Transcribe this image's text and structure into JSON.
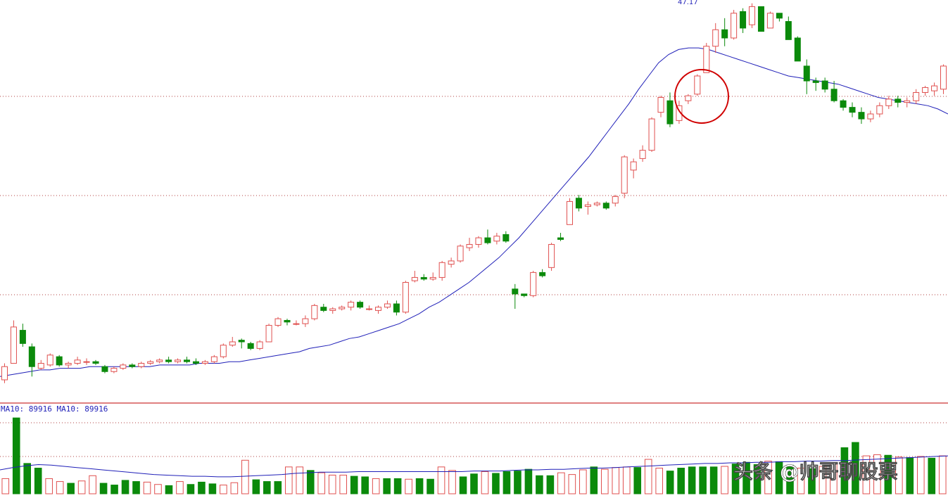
{
  "chart_data": {
    "type": "candlestick",
    "price_panel": {
      "peak_label": "47.17",
      "candles": [
        [
          0.0,
          0.1,
          -0.02,
          0.08
        ],
        [
          0.1,
          0.36,
          0.1,
          0.32
        ],
        [
          0.3,
          0.34,
          0.2,
          0.22
        ],
        [
          0.2,
          0.22,
          0.02,
          0.08
        ],
        [
          0.07,
          0.12,
          0.06,
          0.1
        ],
        [
          0.09,
          0.16,
          0.08,
          0.15
        ],
        [
          0.14,
          0.15,
          0.08,
          0.09
        ],
        [
          0.09,
          0.11,
          0.07,
          0.1
        ],
        [
          0.1,
          0.14,
          0.09,
          0.12
        ],
        [
          0.11,
          0.13,
          0.09,
          0.11
        ],
        [
          0.11,
          0.12,
          0.09,
          0.1
        ],
        [
          0.08,
          0.09,
          0.04,
          0.05
        ],
        [
          0.05,
          0.08,
          0.04,
          0.07
        ],
        [
          0.07,
          0.1,
          0.06,
          0.09
        ],
        [
          0.09,
          0.1,
          0.07,
          0.08
        ],
        [
          0.08,
          0.11,
          0.07,
          0.1
        ],
        [
          0.1,
          0.12,
          0.09,
          0.11
        ],
        [
          0.11,
          0.13,
          0.1,
          0.12
        ],
        [
          0.12,
          0.14,
          0.1,
          0.11
        ],
        [
          0.11,
          0.13,
          0.1,
          0.12
        ],
        [
          0.12,
          0.14,
          0.1,
          0.11
        ],
        [
          0.11,
          0.13,
          0.09,
          0.1
        ],
        [
          0.1,
          0.12,
          0.09,
          0.11
        ],
        [
          0.11,
          0.15,
          0.1,
          0.14
        ],
        [
          0.14,
          0.22,
          0.13,
          0.21
        ],
        [
          0.21,
          0.26,
          0.2,
          0.23
        ],
        [
          0.24,
          0.25,
          0.19,
          0.23
        ],
        [
          0.22,
          0.23,
          0.18,
          0.19
        ],
        [
          0.19,
          0.24,
          0.18,
          0.23
        ],
        [
          0.23,
          0.34,
          0.23,
          0.33
        ],
        [
          0.33,
          0.38,
          0.32,
          0.37
        ],
        [
          0.36,
          0.37,
          0.33,
          0.35
        ],
        [
          0.34,
          0.36,
          0.33,
          0.34
        ],
        [
          0.34,
          0.39,
          0.32,
          0.37
        ],
        [
          0.37,
          0.46,
          0.36,
          0.45
        ],
        [
          0.44,
          0.46,
          0.41,
          0.42
        ],
        [
          0.42,
          0.44,
          0.4,
          0.43
        ],
        [
          0.43,
          0.45,
          0.42,
          0.44
        ],
        [
          0.44,
          0.48,
          0.42,
          0.47
        ],
        [
          0.47,
          0.48,
          0.43,
          0.44
        ],
        [
          0.43,
          0.45,
          0.42,
          0.43
        ],
        [
          0.42,
          0.45,
          0.4,
          0.44
        ],
        [
          0.44,
          0.48,
          0.43,
          0.46
        ],
        [
          0.46,
          0.48,
          0.39,
          0.41
        ],
        [
          0.41,
          0.6,
          0.4,
          0.59
        ],
        [
          0.6,
          0.66,
          0.59,
          0.62
        ],
        [
          0.62,
          0.64,
          0.6,
          0.61
        ],
        [
          0.61,
          0.65,
          0.6,
          0.62
        ],
        [
          0.62,
          0.72,
          0.6,
          0.71
        ],
        [
          0.7,
          0.74,
          0.68,
          0.72
        ],
        [
          0.72,
          0.82,
          0.71,
          0.81
        ],
        [
          0.8,
          0.86,
          0.78,
          0.82
        ],
        [
          0.82,
          0.87,
          0.8,
          0.86
        ],
        [
          0.86,
          0.91,
          0.82,
          0.83
        ],
        [
          0.84,
          0.89,
          0.82,
          0.87
        ],
        [
          0.88,
          0.9,
          0.83,
          0.84
        ],
        [
          0.55,
          0.58,
          0.43,
          0.52
        ],
        [
          0.52,
          0.52,
          0.5,
          0.51
        ],
        [
          0.51,
          0.66,
          0.5,
          0.65
        ],
        [
          0.65,
          0.67,
          0.62,
          0.63
        ],
        [
          0.68,
          0.83,
          0.66,
          0.82
        ],
        [
          0.86,
          0.89,
          0.84,
          0.85
        ],
        [
          0.94,
          1.1,
          0.94,
          1.08
        ],
        [
          1.1,
          1.12,
          1.02,
          1.04
        ],
        [
          1.05,
          1.08,
          1.0,
          1.06
        ],
        [
          1.06,
          1.08,
          1.05,
          1.07
        ],
        [
          1.07,
          1.08,
          1.03,
          1.04
        ],
        [
          1.07,
          1.12,
          1.05,
          1.11
        ],
        [
          1.13,
          1.36,
          1.1,
          1.35
        ],
        [
          1.27,
          1.34,
          1.22,
          1.32
        ],
        [
          1.34,
          1.42,
          1.32,
          1.39
        ],
        [
          1.39,
          1.59,
          1.38,
          1.58
        ],
        [
          1.62,
          1.72,
          1.59,
          1.71
        ],
        [
          1.69,
          1.74,
          1.53,
          1.55
        ],
        [
          1.57,
          1.69,
          1.55,
          1.66
        ],
        [
          1.69,
          1.73,
          1.67,
          1.72
        ],
        [
          1.73,
          1.85,
          1.72,
          1.84
        ],
        [
          1.86,
          2.04,
          1.86,
          2.02
        ],
        [
          2.02,
          2.16,
          1.98,
          2.12
        ],
        [
          2.12,
          2.19,
          2.02,
          2.07
        ],
        [
          2.07,
          2.24,
          2.06,
          2.22
        ],
        [
          2.23,
          2.25,
          2.1,
          2.13
        ],
        [
          2.15,
          2.28,
          2.13,
          2.26
        ],
        [
          2.26,
          2.25,
          2.11,
          2.11
        ],
        [
          2.13,
          2.23,
          2.13,
          2.22
        ],
        [
          2.22,
          2.22,
          2.17,
          2.19
        ],
        [
          2.17,
          2.2,
          2.06,
          2.06
        ],
        [
          2.07,
          2.08,
          1.95,
          1.93
        ],
        [
          1.9,
          1.94,
          1.73,
          1.81
        ],
        [
          1.81,
          1.83,
          1.75,
          1.8
        ],
        [
          1.81,
          1.83,
          1.74,
          1.76
        ],
        [
          1.76,
          1.81,
          1.68,
          1.69
        ],
        [
          1.69,
          1.7,
          1.63,
          1.65
        ],
        [
          1.65,
          1.68,
          1.59,
          1.62
        ],
        [
          1.62,
          1.65,
          1.55,
          1.58
        ],
        [
          1.58,
          1.63,
          1.56,
          1.61
        ],
        [
          1.61,
          1.68,
          1.59,
          1.66
        ],
        [
          1.66,
          1.72,
          1.64,
          1.7
        ],
        [
          1.7,
          1.72,
          1.65,
          1.68
        ],
        [
          1.68,
          1.71,
          1.65,
          1.69
        ],
        [
          1.69,
          1.76,
          1.67,
          1.74
        ],
        [
          1.74,
          1.78,
          1.72,
          1.77
        ],
        [
          1.75,
          1.8,
          1.72,
          1.78
        ],
        [
          1.76,
          1.91,
          1.73,
          1.9
        ]
      ],
      "ma_line": [
        0.02,
        0.03,
        0.04,
        0.05,
        0.06,
        0.06,
        0.07,
        0.07,
        0.07,
        0.08,
        0.08,
        0.08,
        0.08,
        0.08,
        0.08,
        0.08,
        0.09,
        0.09,
        0.09,
        0.09,
        0.1,
        0.1,
        0.1,
        0.11,
        0.11,
        0.12,
        0.13,
        0.14,
        0.15,
        0.16,
        0.17,
        0.19,
        0.2,
        0.21,
        0.23,
        0.25,
        0.26,
        0.28,
        0.3,
        0.32,
        0.34,
        0.37,
        0.4,
        0.44,
        0.47,
        0.51,
        0.55,
        0.59,
        0.64,
        0.69,
        0.74,
        0.8,
        0.86,
        0.93,
        1.0,
        1.07,
        1.14,
        1.21,
        1.28,
        1.35,
        1.43,
        1.51,
        1.59,
        1.67,
        1.76,
        1.84,
        1.92,
        1.97,
        2.0,
        2.01,
        2.01,
        2.0,
        1.98,
        1.96,
        1.94,
        1.92,
        1.9,
        1.88,
        1.86,
        1.84,
        1.83,
        1.82,
        1.81,
        1.8,
        1.79,
        1.77,
        1.75,
        1.73,
        1.71,
        1.7,
        1.69,
        1.68,
        1.67,
        1.66,
        1.64,
        1.61
      ]
    },
    "volume_panel": {
      "legend": "MA10: 89916 MA10: 89916",
      "bars": [
        [
          0.52,
          1
        ],
        [
          2.6,
          0
        ],
        [
          1.04,
          0
        ],
        [
          0.88,
          0
        ],
        [
          0.52,
          1
        ],
        [
          0.42,
          1
        ],
        [
          0.36,
          0
        ],
        [
          0.44,
          1
        ],
        [
          0.62,
          1
        ],
        [
          0.36,
          0
        ],
        [
          0.3,
          0
        ],
        [
          0.46,
          0
        ],
        [
          0.42,
          0
        ],
        [
          0.4,
          1
        ],
        [
          0.32,
          1
        ],
        [
          0.28,
          0
        ],
        [
          0.42,
          1
        ],
        [
          0.32,
          0
        ],
        [
          0.4,
          0
        ],
        [
          0.34,
          0
        ],
        [
          0.3,
          1
        ],
        [
          0.38,
          1
        ],
        [
          1.15,
          1
        ],
        [
          0.48,
          0
        ],
        [
          0.42,
          0
        ],
        [
          0.42,
          0
        ],
        [
          0.92,
          1
        ],
        [
          0.92,
          1
        ],
        [
          0.8,
          0
        ],
        [
          0.72,
          1
        ],
        [
          0.64,
          1
        ],
        [
          0.64,
          1
        ],
        [
          0.6,
          0
        ],
        [
          0.58,
          0
        ],
        [
          0.52,
          1
        ],
        [
          0.52,
          0
        ],
        [
          0.52,
          0
        ],
        [
          0.5,
          1
        ],
        [
          0.52,
          0
        ],
        [
          0.5,
          0
        ],
        [
          0.92,
          1
        ],
        [
          0.8,
          1
        ],
        [
          0.58,
          0
        ],
        [
          0.68,
          0
        ],
        [
          0.76,
          1
        ],
        [
          0.7,
          0
        ],
        [
          0.76,
          0
        ],
        [
          0.78,
          0
        ],
        [
          0.84,
          0
        ],
        [
          0.62,
          0
        ],
        [
          0.62,
          0
        ],
        [
          0.72,
          1
        ],
        [
          0.66,
          1
        ],
        [
          0.82,
          1
        ],
        [
          0.92,
          0
        ],
        [
          0.84,
          1
        ],
        [
          0.9,
          1
        ],
        [
          0.92,
          1
        ],
        [
          0.9,
          0
        ],
        [
          1.18,
          1
        ],
        [
          0.88,
          1
        ],
        [
          0.78,
          0
        ],
        [
          0.88,
          0
        ],
        [
          0.92,
          0
        ],
        [
          0.92,
          0
        ],
        [
          0.92,
          0
        ],
        [
          0.94,
          1
        ],
        [
          1.02,
          0
        ],
        [
          1.08,
          0
        ],
        [
          1.0,
          0
        ],
        [
          1.12,
          1
        ],
        [
          1.1,
          0
        ],
        [
          0.98,
          0
        ],
        [
          0.88,
          1
        ],
        [
          0.86,
          0
        ],
        [
          0.94,
          1
        ],
        [
          1.04,
          1
        ],
        [
          1.58,
          0
        ],
        [
          1.76,
          0
        ],
        [
          1.3,
          1
        ],
        [
          1.34,
          1
        ],
        [
          1.32,
          0
        ],
        [
          1.26,
          1
        ],
        [
          1.24,
          0
        ],
        [
          1.28,
          1
        ],
        [
          1.22,
          0
        ],
        [
          1.3,
          1
        ]
      ],
      "ma_line": [
        0.82,
        0.9,
        0.96,
        1.0,
        0.98,
        0.94,
        0.9,
        0.86,
        0.82,
        0.78,
        0.74,
        0.7,
        0.66,
        0.64,
        0.62,
        0.6,
        0.6,
        0.58,
        0.58,
        0.6,
        0.62,
        0.64,
        0.66,
        0.7,
        0.72,
        0.74,
        0.74,
        0.74,
        0.76,
        0.76,
        0.76,
        0.76,
        0.76,
        0.76,
        0.76,
        0.76,
        0.76,
        0.78,
        0.78,
        0.78,
        0.8,
        0.82,
        0.82,
        0.84,
        0.84,
        0.86,
        0.88,
        0.88,
        0.9,
        0.92,
        0.94,
        0.96,
        0.98,
        1.0,
        1.02,
        1.04,
        1.04,
        1.06,
        1.06,
        1.08,
        1.08,
        1.1,
        1.1,
        1.12,
        1.12,
        1.14,
        1.14,
        1.16,
        1.18,
        1.2,
        1.22,
        1.24,
        1.26,
        1.28,
        1.3
      ]
    },
    "watermark": "头条 @帅哥聊股票",
    "colors": {
      "up": "#e0504f",
      "down": "#0b8a0b",
      "ma": "#1f1fb8",
      "grid": "#b04040",
      "panel_border": "#c00000",
      "volume_legend": "#1f1fb8",
      "circle": "#d00000"
    }
  }
}
